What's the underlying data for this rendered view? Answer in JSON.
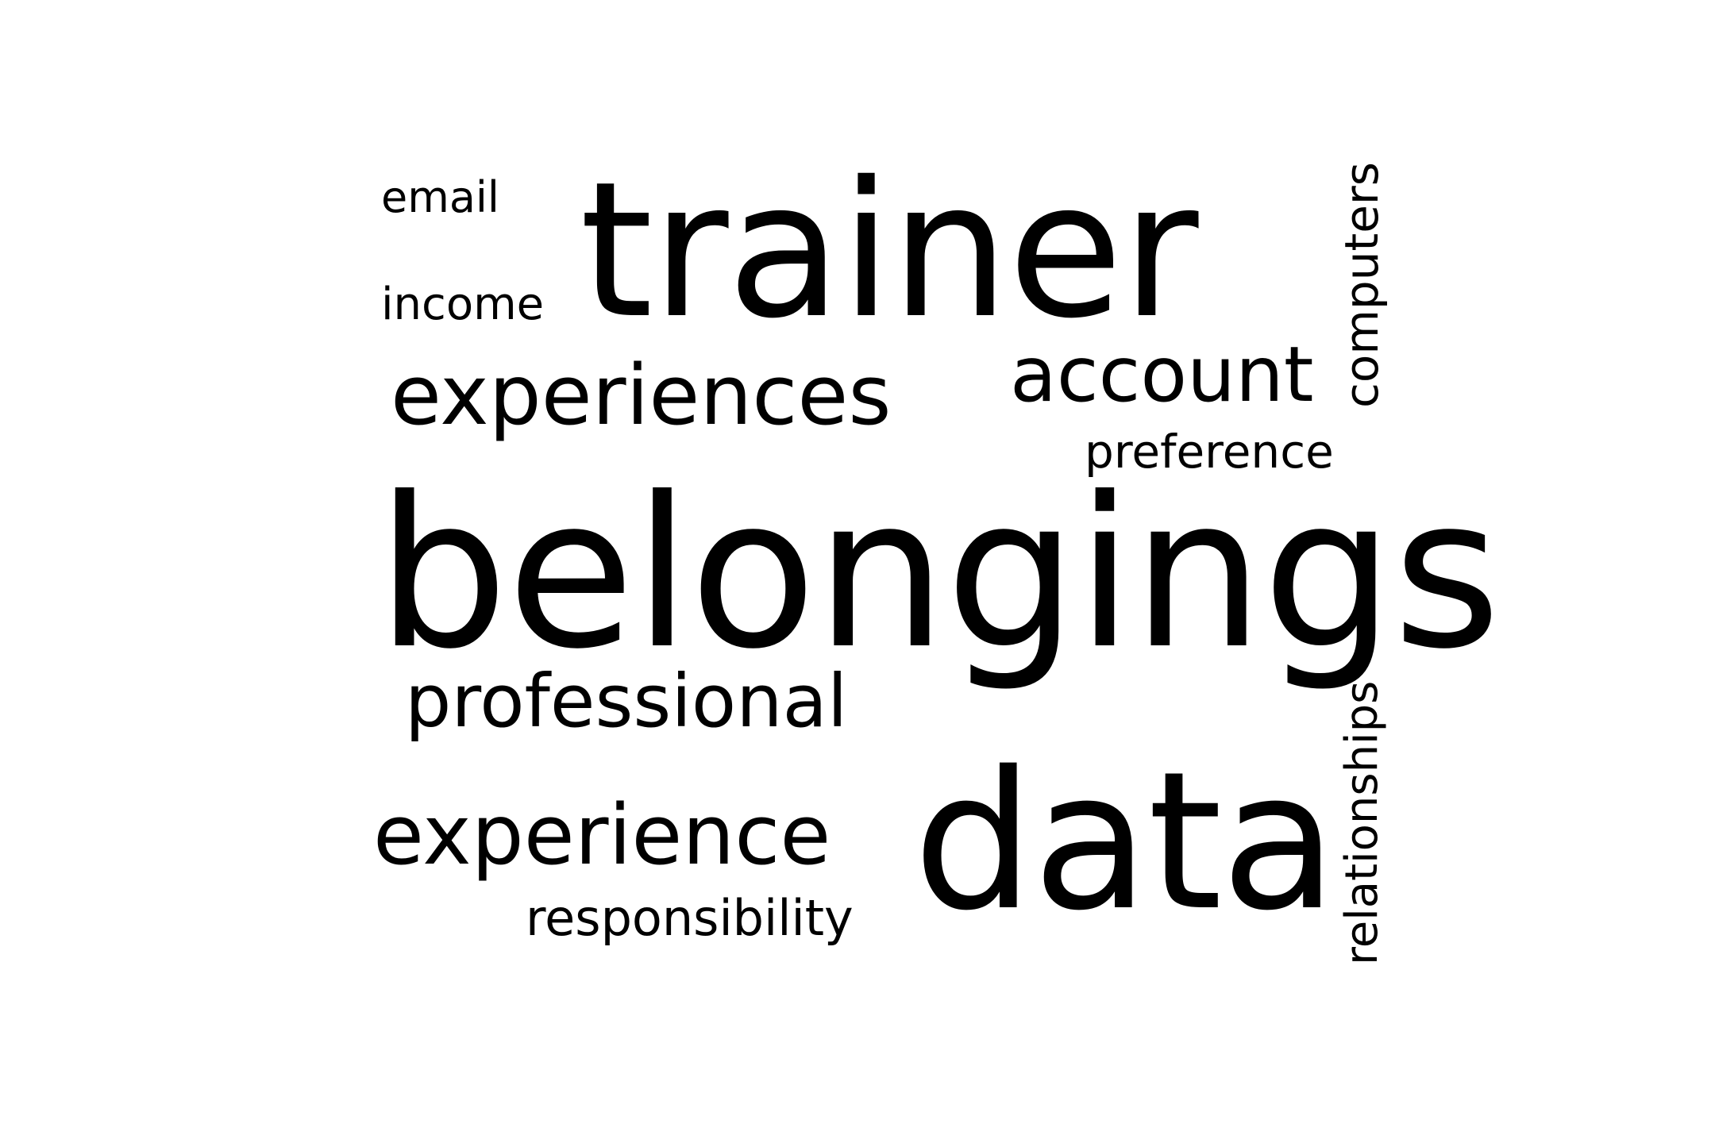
{
  "word_cloud": {
    "words": [
      {
        "text": "email"
      },
      {
        "text": "income"
      },
      {
        "text": "trainer"
      },
      {
        "text": "experiences"
      },
      {
        "text": "account"
      },
      {
        "text": "computers",
        "orientation": "vertical"
      },
      {
        "text": "preference"
      },
      {
        "text": "belongings"
      },
      {
        "text": "professional"
      },
      {
        "text": "experience"
      },
      {
        "text": "responsibility"
      },
      {
        "text": "data"
      },
      {
        "text": "relationships",
        "orientation": "vertical"
      }
    ],
    "text_color": "#000000",
    "background_color": "#ffffff"
  }
}
